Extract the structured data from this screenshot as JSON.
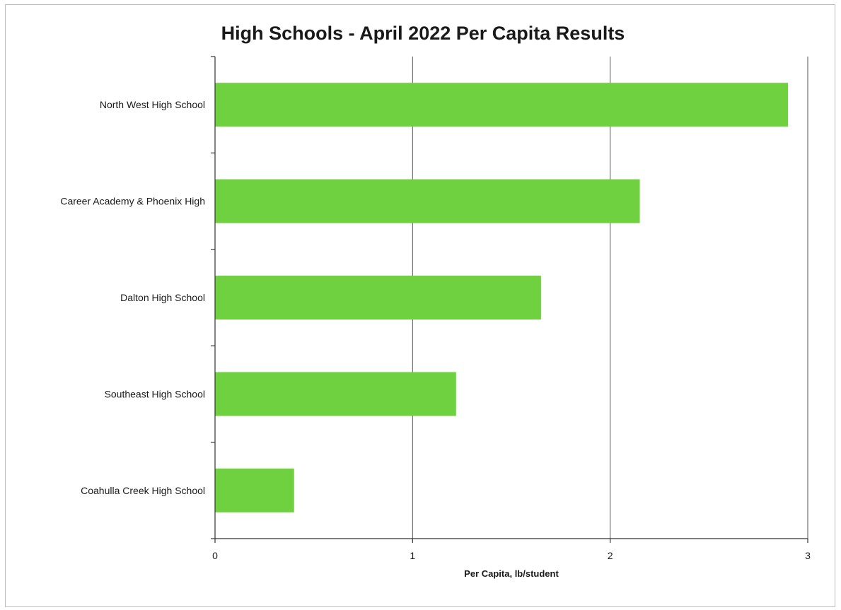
{
  "chart_data": {
    "type": "bar",
    "orientation": "horizontal",
    "title": "High Schools - April 2022 Per Capita Results",
    "xlabel": "Per Capita, lb/student",
    "ylabel": "",
    "categories": [
      "North West High School",
      "Career Academy & Phoenix High",
      "Dalton High School",
      "Southeast High School",
      "Coahulla Creek High School"
    ],
    "values": [
      2.9,
      2.15,
      1.65,
      1.22,
      0.4
    ],
    "xlim": [
      0,
      3
    ],
    "xticks": [
      "0",
      "1",
      "2",
      "3"
    ],
    "grid": "vertical",
    "legend": "none",
    "bar_color": "#6fd040"
  }
}
